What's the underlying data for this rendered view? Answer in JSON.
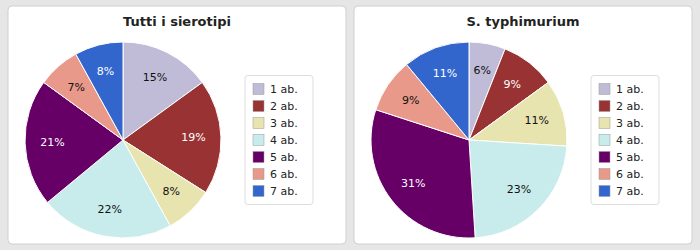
{
  "chart_data": [
    {
      "type": "pie",
      "title": "Tutti i sierotipi",
      "categories": [
        "1 ab.",
        "2 ab.",
        "3 ab.",
        "4 ab.",
        "5 ab.",
        "6 ab.",
        "7 ab."
      ],
      "values": [
        15,
        19,
        8,
        22,
        21,
        7,
        8
      ],
      "value_labels": [
        "15%",
        "19%",
        "8%",
        "22%",
        "21%",
        "7%",
        "8%"
      ],
      "colors": [
        "#c0bcd8",
        "#993333",
        "#e8e4b0",
        "#c8ecec",
        "#660066",
        "#e8998a",
        "#3366cc"
      ],
      "data_labels": true,
      "legend": "right"
    },
    {
      "type": "pie",
      "title": "S. typhimurium",
      "categories": [
        "1 ab.",
        "2 ab.",
        "3 ab.",
        "4 ab.",
        "5 ab.",
        "6 ab.",
        "7 ab."
      ],
      "values": [
        6,
        9,
        11,
        23,
        31,
        9,
        11
      ],
      "value_labels": [
        "6%",
        "9%",
        "11%",
        "23%",
        "31%",
        "9%",
        "11%"
      ],
      "colors": [
        "#c0bcd8",
        "#993333",
        "#e8e4b0",
        "#c8ecec",
        "#660066",
        "#e8998a",
        "#3366cc"
      ],
      "data_labels": true,
      "legend": "right"
    }
  ]
}
